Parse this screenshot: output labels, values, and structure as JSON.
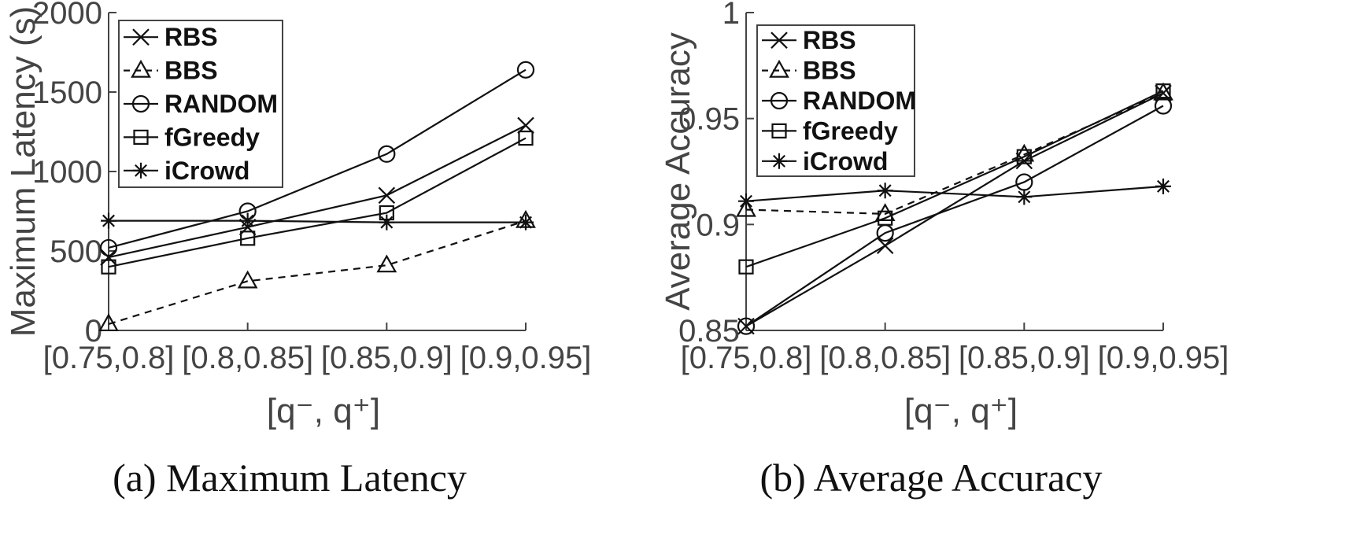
{
  "chart_data": [
    {
      "type": "line",
      "caption": "(a)  Maximum Latency",
      "xlabel": "[q⁻, q⁺]",
      "ylabel": "Maximum Latency (s)",
      "categories": [
        "[0.75,0.8]",
        "[0.8,0.85]",
        "[0.85,0.9]",
        "[0.9,0.95]"
      ],
      "ylim": [
        0,
        2000
      ],
      "yticks": [
        0,
        500,
        1000,
        1500,
        2000
      ],
      "ytick_labels": [
        "0",
        "500",
        "1000",
        "1500",
        "2000"
      ],
      "grid": false,
      "legend_position": "top-left",
      "series": [
        {
          "name": "RBS",
          "marker": "x",
          "dashed": false,
          "values": [
            460,
            650,
            850,
            1290
          ]
        },
        {
          "name": "BBS",
          "marker": "triangle",
          "dashed": true,
          "values": [
            40,
            310,
            410,
            690
          ]
        },
        {
          "name": "RANDOM",
          "marker": "circle",
          "dashed": false,
          "values": [
            520,
            750,
            1110,
            1640
          ]
        },
        {
          "name": "fGreedy",
          "marker": "square",
          "dashed": false,
          "values": [
            400,
            580,
            740,
            1210
          ]
        },
        {
          "name": "iCrowd",
          "marker": "star",
          "dashed": false,
          "values": [
            690,
            690,
            680,
            680
          ]
        }
      ]
    },
    {
      "type": "line",
      "caption": "(b)  Average Accuracy",
      "xlabel": "[q⁻, q⁺]",
      "ylabel": "Average Accuracy",
      "categories": [
        "[0.75,0.8]",
        "[0.8,0.85]",
        "[0.85,0.9]",
        "[0.9,0.95]"
      ],
      "ylim": [
        0.85,
        1
      ],
      "yticks": [
        0.85,
        0.9,
        0.95,
        1
      ],
      "ytick_labels": [
        "0.85",
        "0.9",
        "0.95",
        "1"
      ],
      "grid": false,
      "legend_position": "top-left",
      "series": [
        {
          "name": "RBS",
          "marker": "x",
          "dashed": false,
          "values": [
            0.852,
            0.89,
            0.93,
            0.962
          ]
        },
        {
          "name": "BBS",
          "marker": "triangle",
          "dashed": true,
          "values": [
            0.907,
            0.905,
            0.933,
            0.962
          ]
        },
        {
          "name": "RANDOM",
          "marker": "circle",
          "dashed": false,
          "values": [
            0.852,
            0.896,
            0.92,
            0.956
          ]
        },
        {
          "name": "fGreedy",
          "marker": "square",
          "dashed": false,
          "values": [
            0.88,
            0.903,
            0.932,
            0.963
          ]
        },
        {
          "name": "iCrowd",
          "marker": "star",
          "dashed": false,
          "values": [
            0.911,
            0.916,
            0.913,
            0.918
          ]
        }
      ]
    }
  ]
}
